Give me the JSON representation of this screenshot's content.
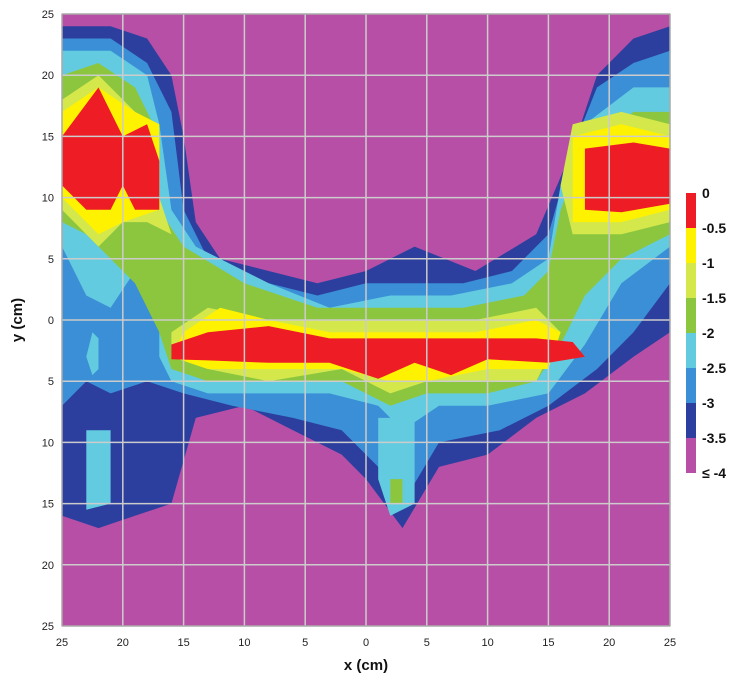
{
  "chart_data": {
    "type": "heatmap",
    "title": "",
    "xlabel": "x (cm)",
    "ylabel": "y (cm)",
    "xlim": [
      -25,
      25
    ],
    "ylim": [
      -25,
      25
    ],
    "grid": true,
    "legend_position": "right",
    "x_tick_labels": [
      "25",
      "20",
      "15",
      "10",
      "5",
      "0",
      "5",
      "10",
      "15",
      "20",
      "25"
    ],
    "y_tick_labels": [
      "25",
      "20",
      "15",
      "10",
      "5",
      "0",
      "5",
      "10",
      "15",
      "20",
      "25"
    ],
    "levels": [
      {
        "label": "0",
        "color": "#ee1c24"
      },
      {
        "label": "-0.5",
        "color": "#fff200"
      },
      {
        "label": "-1",
        "color": "#d4e84c"
      },
      {
        "label": "-1.5",
        "color": "#8cc63f"
      },
      {
        "label": "-2",
        "color": "#63cbe0"
      },
      {
        "label": "-2.5",
        "color": "#3b8fd6"
      },
      {
        "label": "-3",
        "color": "#2d3f9e"
      },
      {
        "label": "-3.5",
        "color": "#b84fa6"
      },
      {
        "label": "≤ -4",
        "color": "#b84fa6"
      }
    ],
    "background_color": "#b84fa6",
    "grid_color": "#cccccc",
    "regions": [
      {
        "name": "upper-left-lobe",
        "level": "0",
        "x": [
          -25,
          -16
        ],
        "y": [
          10,
          19
        ]
      },
      {
        "name": "upper-right-lobe",
        "level": "0",
        "x": [
          17,
          25
        ],
        "y": [
          9,
          15
        ]
      },
      {
        "name": "central-band",
        "level": "0",
        "x": [
          -17,
          18
        ],
        "y": [
          -5,
          0
        ]
      },
      {
        "name": "lower-left-tail",
        "level": "-2.5",
        "x": [
          -25,
          -16
        ],
        "y": [
          -17,
          -9
        ]
      },
      {
        "name": "central-tail",
        "level": "-2.5",
        "x": [
          0,
          5
        ],
        "y": [
          -16,
          -8
        ]
      }
    ]
  }
}
